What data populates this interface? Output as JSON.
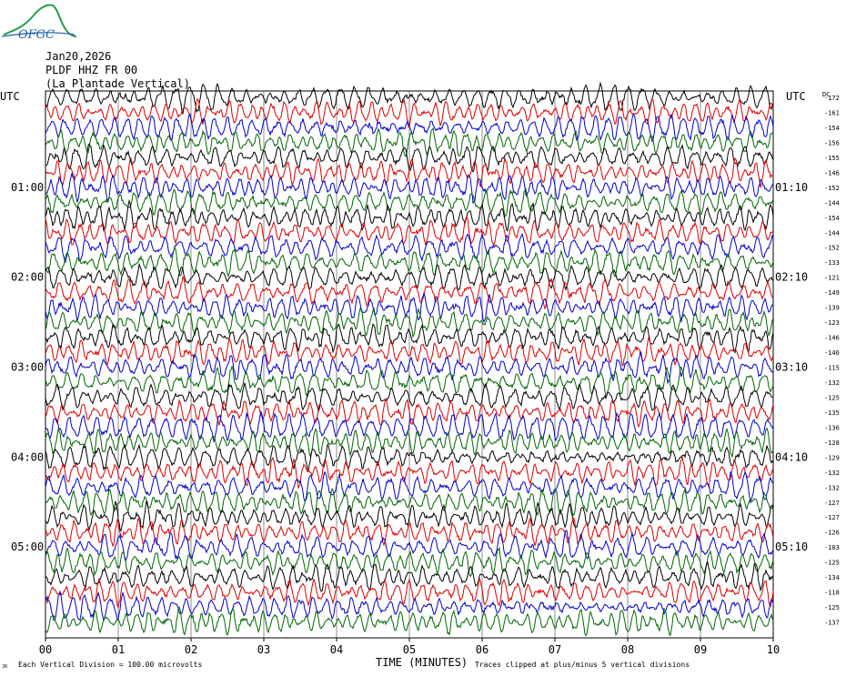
{
  "logo": {
    "text": "OFGC",
    "color": "#2a9a4a",
    "text_color": "#1f5fa8"
  },
  "header": {
    "date": "Jan20,2026",
    "station": "PLDF HHZ FR 00",
    "station_name": "(La Plantade Vertical)"
  },
  "left_axis_label": "UTC",
  "right_axis_label": "UTC",
  "right_values_header": "DC",
  "footer": {
    "scale_prefix": "JR",
    "scale_note": "Each Vertical Division =  100.00 microvolts",
    "x_title": "TIME (MINUTES)",
    "clip_note": "Traces clipped at plus/minus 5 vertical divisions"
  },
  "chart_data": {
    "type": "line",
    "title": "",
    "xlabel": "TIME (MINUTES)",
    "xlim": [
      0,
      10
    ],
    "x_ticks": [
      "00",
      "01",
      "02",
      "03",
      "04",
      "05",
      "06",
      "07",
      "08",
      "09",
      "10"
    ],
    "trace_count": 36,
    "trace_minutes": 10,
    "grid": "vertical lines at each minute",
    "trace_colors": [
      "#000000",
      "#dd0000",
      "#0000cc",
      "#006600"
    ],
    "left_time_labels": [
      {
        "trace": 6,
        "label": "01:00"
      },
      {
        "trace": 12,
        "label": "02:00"
      },
      {
        "trace": 18,
        "label": "03:00"
      },
      {
        "trace": 24,
        "label": "04:00"
      },
      {
        "trace": 30,
        "label": "05:00"
      }
    ],
    "right_time_labels": [
      {
        "trace": 6,
        "label": "01:10"
      },
      {
        "trace": 12,
        "label": "02:10"
      },
      {
        "trace": 18,
        "label": "03:10"
      },
      {
        "trace": 24,
        "label": "04:10"
      },
      {
        "trace": 30,
        "label": "05:10"
      }
    ],
    "dc_offsets": [
      "-172",
      "-161",
      "-154",
      "-156",
      "-155",
      "-146",
      "-152",
      "-144",
      "-154",
      "-144",
      "-152",
      "-133",
      "-121",
      "-149",
      "-139",
      "-123",
      "-146",
      "-146",
      "-115",
      "-132",
      "-125",
      "-135",
      "-136",
      "-128",
      "-129",
      "-132",
      "-132",
      "-127",
      "-127",
      "-126",
      "-103",
      "-125",
      "-134",
      "-118",
      "-125",
      "-137"
    ]
  }
}
